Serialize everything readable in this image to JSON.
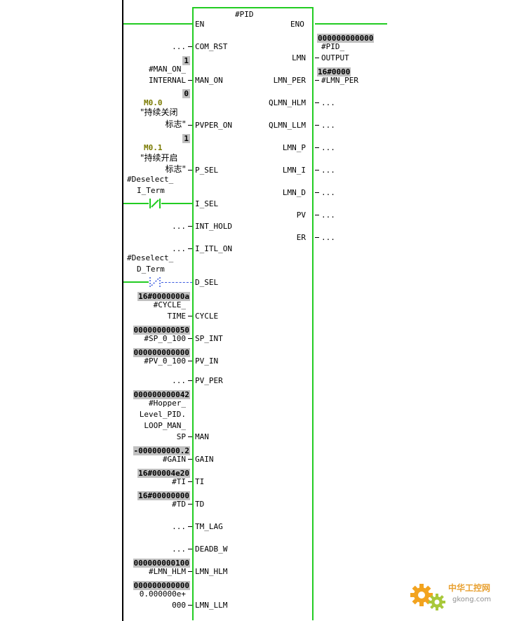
{
  "block": {
    "title": "#PID",
    "en_label": "EN",
    "eno_label": "ENO",
    "inputs": [
      {
        "id": "com_rst",
        "name": "COM_RST",
        "src": "..."
      },
      {
        "id": "man_on",
        "name": "MAN_ON",
        "val": "1",
        "src1": "#MAN_ON_",
        "src2": "INTERNAL"
      },
      {
        "id": "pvper_on",
        "name": "PVPER_ON",
        "val": "0",
        "addr": "M0.0",
        "c1": "\"持续关闭",
        "c2": "标志\""
      },
      {
        "id": "p_sel",
        "name": "P_SEL",
        "val": "1",
        "addr": "M0.1",
        "c1": "\"持续开启",
        "c2": "标志\""
      },
      {
        "id": "i_sel",
        "name": "I_SEL",
        "src1": "#Deselect_",
        "src2": "I_Term"
      },
      {
        "id": "int_hold",
        "name": "INT_HOLD",
        "src": "..."
      },
      {
        "id": "i_itl_on",
        "name": "I_ITL_ON",
        "src": "..."
      },
      {
        "id": "d_sel",
        "name": "D_SEL",
        "src1": "#Deselect_",
        "src2": "D_Term"
      },
      {
        "id": "cycle",
        "name": "CYCLE",
        "val": "16#0000000a",
        "src1": "#CYCLE_",
        "src2": "TIME"
      },
      {
        "id": "sp_int",
        "name": "SP_INT",
        "val": "000000000050",
        "src": "#SP_0_100"
      },
      {
        "id": "pv_in",
        "name": "PV_IN",
        "val": "000000000000",
        "src": "#PV_0_100"
      },
      {
        "id": "pv_per",
        "name": "PV_PER",
        "src": "..."
      },
      {
        "id": "man",
        "name": "MAN",
        "val": "000000000042",
        "l1": "#Hopper_",
        "l2": "Level_PID.",
        "l3": "LOOP_MAN_",
        "l4": "SP"
      },
      {
        "id": "gain",
        "name": "GAIN",
        "val": "-000000000.2",
        "src": "#GAIN"
      },
      {
        "id": "ti",
        "name": "TI",
        "val": "16#00004e20",
        "src": "#TI"
      },
      {
        "id": "td",
        "name": "TD",
        "val": "16#00000000",
        "src": "#TD"
      },
      {
        "id": "tm_lag",
        "name": "TM_LAG",
        "src": "..."
      },
      {
        "id": "deadb_w",
        "name": "DEADB_W",
        "src": "..."
      },
      {
        "id": "lmn_hlm",
        "name": "LMN_HLM",
        "val": "000000000100",
        "src": "#LMN_HLM"
      },
      {
        "id": "lmn_llm",
        "name": "LMN_LLM",
        "val": "000000000000",
        "src1": "0.000000e+",
        "src2": "000"
      }
    ],
    "outputs": [
      {
        "id": "lmn",
        "name": "LMN",
        "val": "000000000000",
        "dst1": "#PID_",
        "dst2": "OUTPUT"
      },
      {
        "id": "lmn_per",
        "name": "LMN_PER",
        "val": "16#0000",
        "dst": "#LMN_PER"
      },
      {
        "id": "qlmn_hlm",
        "name": "QLMN_HLM",
        "dst": "..."
      },
      {
        "id": "qlmn_llm",
        "name": "QLMN_LLM",
        "dst": "..."
      },
      {
        "id": "lmn_p",
        "name": "LMN_P",
        "dst": "..."
      },
      {
        "id": "lmn_i",
        "name": "LMN_I",
        "dst": "..."
      },
      {
        "id": "lmn_d",
        "name": "LMN_D",
        "dst": "..."
      },
      {
        "id": "pv",
        "name": "PV",
        "dst": "..."
      },
      {
        "id": "er",
        "name": "ER",
        "dst": "..."
      }
    ]
  },
  "watermark": {
    "brand": "中华工控网",
    "site": "gkong.com"
  },
  "colors": {
    "wire": "#22cc22",
    "value_bg": "#c0c0c0",
    "address": "#7a7a00",
    "gear": "#f2a31f"
  }
}
